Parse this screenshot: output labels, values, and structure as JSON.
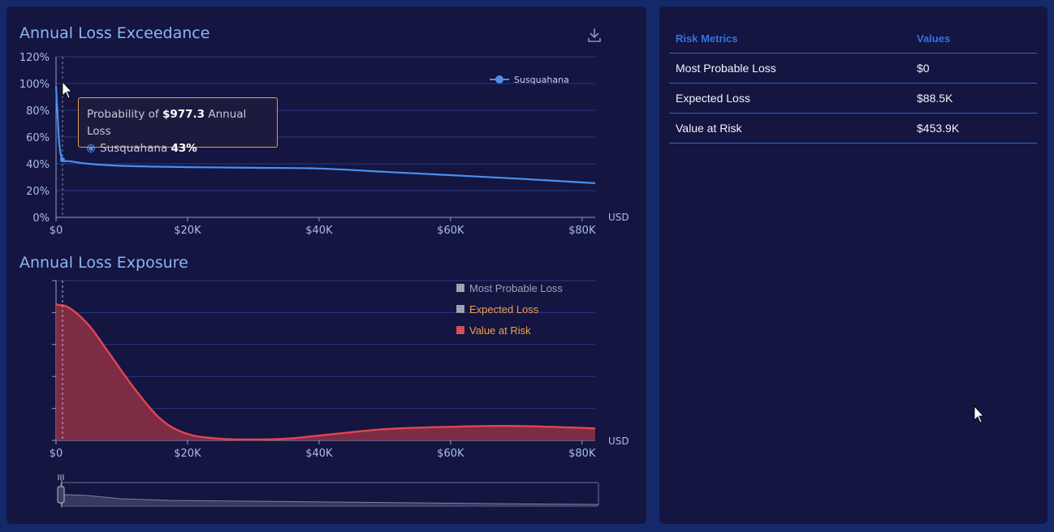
{
  "colors": {
    "exceedance_line": "#4b8ff0",
    "exposure_line": "#e04650",
    "exposure_fill": "#8a2e45",
    "grid": "#243a86",
    "tooltip_border": "#e0a050",
    "legend_orange": "#f2a04a",
    "legend_grey": "#9aa3bb"
  },
  "exceedance": {
    "title": "Annual Loss Exceedance",
    "download_icon": "download-icon",
    "unit": "USD",
    "x_ticks": [
      "$0",
      "$20K",
      "$40K",
      "$60K",
      "$80K"
    ],
    "y_ticks": [
      "120%",
      "100%",
      "80%",
      "60%",
      "40%",
      "20%",
      "0%"
    ],
    "legend": "Susquahana",
    "tooltip": {
      "prefix": "Probability of ",
      "amount": "$977.3",
      "suffix": " Annual Loss",
      "series": "Susquahana",
      "value": "43%"
    }
  },
  "exposure": {
    "title": "Annual Loss Exposure",
    "unit": "USD",
    "x_ticks": [
      "$0",
      "$20K",
      "$40K",
      "$60K",
      "$80K"
    ],
    "legend": [
      {
        "label": "Most Probable Loss",
        "color": "#9aa3bb",
        "swatch": "#8e97a8"
      },
      {
        "label": "Expected Loss",
        "color": "#f2a04a",
        "swatch": "#8e97a8"
      },
      {
        "label": "Value at Risk",
        "color": "#f2a04a",
        "swatch": "#c9404c"
      }
    ]
  },
  "chart_data": [
    {
      "type": "line",
      "title": "Annual Loss Exceedance",
      "xlabel": "USD",
      "ylabel": "",
      "xlim": [
        0,
        82000
      ],
      "ylim": [
        0,
        120
      ],
      "series": [
        {
          "name": "Susquahana",
          "x": [
            0,
            200,
            500,
            977.3,
            2000,
            5000,
            10000,
            20000,
            30000,
            40000,
            50000,
            60000,
            70000,
            82000
          ],
          "y": [
            98,
            80,
            55,
            43,
            42,
            40,
            38.5,
            37.5,
            37,
            36.5,
            34,
            31.5,
            29,
            25.5
          ]
        }
      ]
    },
    {
      "type": "area",
      "title": "Annual Loss Exposure",
      "xlabel": "USD",
      "xlim": [
        0,
        82000
      ],
      "series": [
        {
          "name": "Value at Risk",
          "x": [
            0,
            2000,
            5000,
            8000,
            12000,
            16000,
            20000,
            25000,
            30000,
            35000,
            40000,
            50000,
            60000,
            70000,
            82000
          ],
          "y": [
            0.85,
            0.83,
            0.72,
            0.55,
            0.32,
            0.13,
            0.04,
            0.01,
            0.005,
            0.01,
            0.03,
            0.07,
            0.085,
            0.09,
            0.075
          ]
        }
      ]
    }
  ],
  "table": {
    "headers": [
      "Risk Metrics",
      "Values"
    ],
    "rows": [
      {
        "metric": "Most Probable Loss",
        "value": "$0"
      },
      {
        "metric": "Expected Loss",
        "value": "$88.5K"
      },
      {
        "metric": "Value at Risk",
        "value": "$453.9K"
      }
    ]
  }
}
